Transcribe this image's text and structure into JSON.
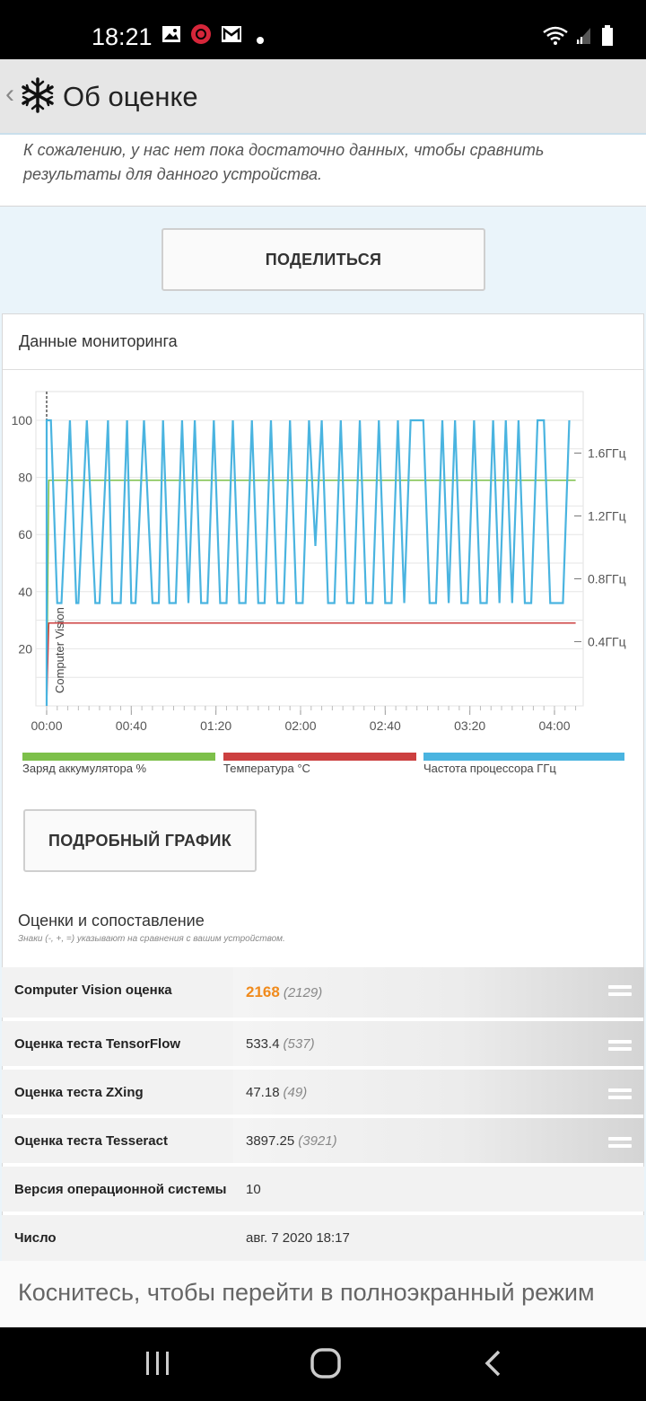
{
  "status_bar": {
    "time": "18:21"
  },
  "app_bar": {
    "title": "Об оценке"
  },
  "notice": {
    "text": "К сожалению, у нас нет пока достаточно данных, чтобы сравнить результаты для данного устройства."
  },
  "share_button": {
    "label": "ПОДЕЛИТЬСЯ"
  },
  "monitoring": {
    "title": "Данные мониторинга",
    "detail_button": "ПОДРОБНЫЙ ГРАФИК"
  },
  "chart_data": {
    "type": "line",
    "x_ticks": [
      "00:00",
      "00:40",
      "01:20",
      "02:00",
      "02:40",
      "03:20",
      "04:00"
    ],
    "y_ticks": [
      "100",
      "80",
      "60",
      "40",
      "20"
    ],
    "y_right_ticks": [
      "1.6ГГц",
      "1.2ГГц",
      "0.8ГГц",
      "0.4ГГц"
    ],
    "ylim": [
      0,
      100
    ],
    "marker_label": "Computer Vision",
    "series": [
      {
        "name": "Заряд аккумулятора %",
        "color": "#7dc04a",
        "values_desc": [
          [
            0,
            0
          ],
          [
            1,
            79
          ],
          [
            250,
            79
          ]
        ]
      },
      {
        "name": "Температура °С",
        "color": "#cc4040",
        "values_desc": [
          [
            0,
            0
          ],
          [
            1,
            29
          ],
          [
            250,
            29
          ]
        ]
      },
      {
        "name": "Частота процессора ГГц",
        "color": "#4ab4e0",
        "x_minutes": [
          0,
          2,
          5,
          7,
          11,
          14,
          15,
          19,
          23,
          25,
          29,
          31,
          35,
          38,
          40,
          42,
          46,
          50,
          53,
          55,
          58,
          61,
          64,
          67,
          70,
          73,
          76,
          79,
          82,
          85,
          88,
          91,
          94,
          97,
          100,
          103,
          106,
          109,
          112,
          115,
          118,
          121,
          124,
          127,
          130,
          133,
          136,
          139,
          142,
          145,
          148,
          151,
          154,
          157,
          160,
          163,
          166,
          169,
          172,
          175,
          178,
          181,
          184,
          187,
          190,
          193,
          196,
          199,
          202,
          205,
          208,
          211,
          214,
          217,
          220,
          223,
          226,
          229,
          232,
          235,
          238,
          241,
          244,
          247
        ],
        "values": [
          100,
          100,
          36,
          36,
          100,
          36,
          36,
          100,
          36,
          36,
          100,
          36,
          36,
          100,
          36,
          36,
          100,
          36,
          36,
          100,
          36,
          36,
          100,
          36,
          100,
          36,
          36,
          100,
          36,
          36,
          100,
          36,
          36,
          100,
          36,
          36,
          100,
          36,
          36,
          100,
          36,
          36,
          100,
          56,
          100,
          36,
          36,
          100,
          36,
          36,
          100,
          36,
          36,
          100,
          36,
          36,
          100,
          36,
          100,
          100,
          100,
          36,
          36,
          100,
          36,
          100,
          36,
          36,
          100,
          36,
          36,
          100,
          36,
          100,
          36,
          100,
          36,
          36,
          100,
          100,
          36,
          36,
          36,
          100
        ]
      }
    ]
  },
  "legend": [
    {
      "label": "Заряд аккумулятора %",
      "color": "#7dc04a"
    },
    {
      "label": "Температура °С",
      "color": "#cc4040"
    },
    {
      "label": "Частота процессора ГГц",
      "color": "#4ab4e0"
    }
  ],
  "scores": {
    "title": "Оценки и сопоставление",
    "note": "Знаки (-, +, =) указывают на сравнения с вашим устройством.",
    "rows": [
      {
        "label": "Computer Vision оценка",
        "value": "2168",
        "compare": "(2129)"
      },
      {
        "label": "Оценка теста TensorFlow",
        "value": "533.4",
        "compare": "(537)"
      },
      {
        "label": "Оценка теста ZXing",
        "value": "47.18",
        "compare": "(49)"
      },
      {
        "label": "Оценка теста Tesseract",
        "value": "3897.25",
        "compare": "(3921)"
      },
      {
        "label": "Версия операционной системы",
        "value": "10",
        "compare": ""
      },
      {
        "label": "Число",
        "value": "авг. 7 2020 18:17",
        "compare": ""
      }
    ]
  },
  "toast": {
    "text": "Коснитесь, чтобы перейти в полноэкранный режим"
  },
  "colors": {
    "accent_orange": "#f08a1c",
    "link_blue": "#4ab4e0"
  }
}
